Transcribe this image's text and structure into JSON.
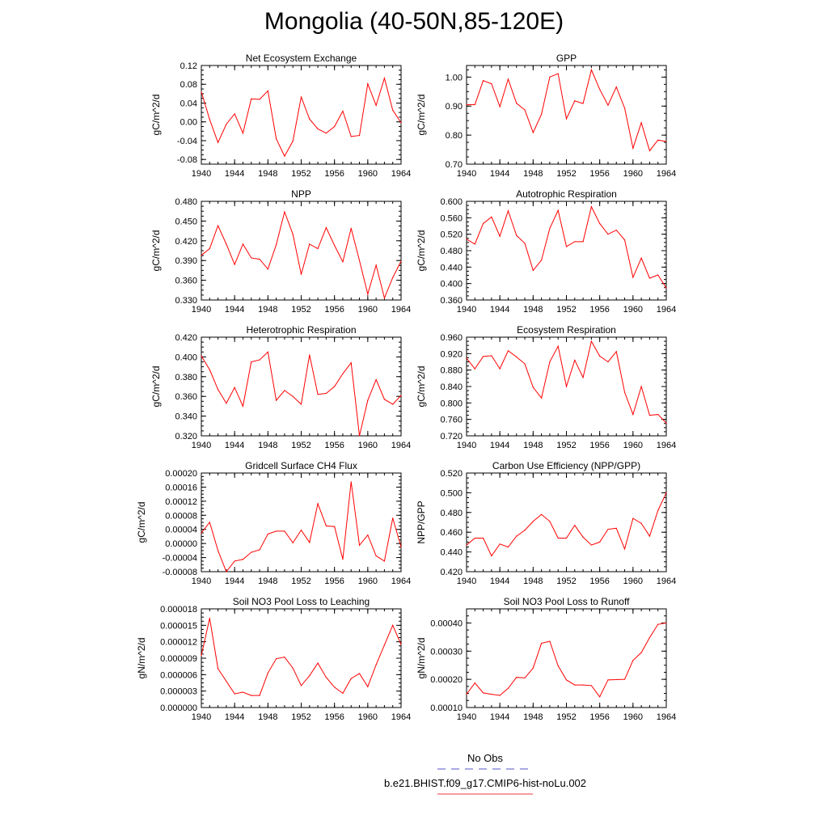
{
  "title": "Mongolia (40-50N,85-120E)",
  "legend": [
    {
      "label": "No Obs",
      "color": "#5555cc",
      "dash": true
    },
    {
      "label": "b.e21.BHIST.f09_g17.CMIP6-hist-noLu.002",
      "color": "#e8383d",
      "dash": false
    }
  ],
  "line_color": "#ff0000",
  "chart_data": [
    {
      "type": "line",
      "title": "Net Ecosystem Exchange",
      "ylabel": "gC/m^2/d",
      "ylim": [
        -0.09,
        0.12
      ],
      "yticks": [
        -0.08,
        -0.04,
        0.0,
        0.04,
        0.08,
        0.12
      ],
      "ytick_labels": [
        "-0.08",
        "-0.04",
        "0.00",
        "0.04",
        "0.08",
        "0.12"
      ],
      "x": [
        1940,
        1941,
        1942,
        1943,
        1944,
        1945,
        1946,
        1947,
        1948,
        1949,
        1950,
        1951,
        1952,
        1953,
        1954,
        1955,
        1956,
        1957,
        1958,
        1959,
        1960,
        1961,
        1962,
        1963,
        1964
      ],
      "values": [
        0.064,
        0.005,
        -0.044,
        -0.005,
        0.017,
        -0.024,
        0.049,
        0.048,
        0.066,
        -0.036,
        -0.073,
        -0.041,
        0.053,
        0.006,
        -0.015,
        -0.024,
        -0.01,
        0.023,
        -0.031,
        -0.029,
        0.081,
        0.035,
        0.093,
        0.025,
        -0.002
      ]
    },
    {
      "type": "line",
      "title": "GPP",
      "ylabel": "gC/m^2/d",
      "ylim": [
        0.7,
        1.04
      ],
      "yticks": [
        0.7,
        0.8,
        0.9,
        1.0
      ],
      "ytick_labels": [
        "0.70",
        "0.80",
        "0.90",
        "1.00"
      ],
      "x": [
        1940,
        1941,
        1942,
        1943,
        1944,
        1945,
        1946,
        1947,
        1948,
        1949,
        1950,
        1951,
        1952,
        1953,
        1954,
        1955,
        1956,
        1957,
        1958,
        1959,
        1960,
        1961,
        1962,
        1963,
        1964
      ],
      "values": [
        0.905,
        0.905,
        0.988,
        0.977,
        0.898,
        0.993,
        0.91,
        0.887,
        0.809,
        0.872,
        1.0,
        1.012,
        0.856,
        0.918,
        0.909,
        1.025,
        0.958,
        0.903,
        0.966,
        0.893,
        0.755,
        0.843,
        0.746,
        0.783,
        0.778
      ]
    },
    {
      "type": "line",
      "title": "NPP",
      "ylabel": "gC/m^2/d",
      "ylim": [
        0.33,
        0.48
      ],
      "yticks": [
        0.33,
        0.36,
        0.39,
        0.42,
        0.45,
        0.48
      ],
      "ytick_labels": [
        "0.330",
        "0.360",
        "0.390",
        "0.420",
        "0.450",
        "0.480"
      ],
      "x": [
        1940,
        1941,
        1942,
        1943,
        1944,
        1945,
        1946,
        1947,
        1948,
        1949,
        1950,
        1951,
        1952,
        1953,
        1954,
        1955,
        1956,
        1957,
        1958,
        1959,
        1960,
        1961,
        1962,
        1963,
        1964
      ],
      "values": [
        0.398,
        0.408,
        0.443,
        0.415,
        0.384,
        0.415,
        0.394,
        0.392,
        0.377,
        0.414,
        0.464,
        0.43,
        0.369,
        0.415,
        0.408,
        0.44,
        0.413,
        0.388,
        0.439,
        0.39,
        0.339,
        0.383,
        0.333,
        0.364,
        0.389
      ]
    },
    {
      "type": "line",
      "title": "Autotrophic Respiration",
      "ylabel": "gC/m^2/d",
      "ylim": [
        0.36,
        0.6
      ],
      "yticks": [
        0.36,
        0.4,
        0.44,
        0.48,
        0.52,
        0.56,
        0.6
      ],
      "ytick_labels": [
        "0.360",
        "0.400",
        "0.440",
        "0.480",
        "0.520",
        "0.560",
        "0.600"
      ],
      "x": [
        1940,
        1941,
        1942,
        1943,
        1944,
        1945,
        1946,
        1947,
        1948,
        1949,
        1950,
        1951,
        1952,
        1953,
        1954,
        1955,
        1956,
        1957,
        1958,
        1959,
        1960,
        1961,
        1962,
        1963,
        1964
      ],
      "values": [
        0.508,
        0.496,
        0.546,
        0.562,
        0.515,
        0.577,
        0.517,
        0.498,
        0.432,
        0.457,
        0.534,
        0.578,
        0.49,
        0.502,
        0.502,
        0.587,
        0.546,
        0.52,
        0.53,
        0.506,
        0.415,
        0.462,
        0.413,
        0.421,
        0.389
      ]
    },
    {
      "type": "line",
      "title": "Heterotrophic Respiration",
      "ylabel": "gC/m^2/d",
      "ylim": [
        0.32,
        0.42
      ],
      "yticks": [
        0.32,
        0.34,
        0.36,
        0.38,
        0.4,
        0.42
      ],
      "ytick_labels": [
        "0.320",
        "0.340",
        "0.360",
        "0.380",
        "0.400",
        "0.420"
      ],
      "x": [
        1940,
        1941,
        1942,
        1943,
        1944,
        1945,
        1946,
        1947,
        1948,
        1949,
        1950,
        1951,
        1952,
        1953,
        1954,
        1955,
        1956,
        1957,
        1958,
        1959,
        1960,
        1961,
        1962,
        1963,
        1964
      ],
      "values": [
        0.401,
        0.387,
        0.367,
        0.353,
        0.369,
        0.35,
        0.395,
        0.397,
        0.405,
        0.356,
        0.366,
        0.36,
        0.352,
        0.402,
        0.362,
        0.363,
        0.37,
        0.383,
        0.394,
        0.32,
        0.356,
        0.377,
        0.357,
        0.352,
        0.361
      ]
    },
    {
      "type": "line",
      "title": "Ecosystem Respiration",
      "ylabel": "gC/m^2/d",
      "ylim": [
        0.72,
        0.96
      ],
      "yticks": [
        0.72,
        0.76,
        0.8,
        0.84,
        0.88,
        0.92,
        0.96
      ],
      "ytick_labels": [
        "0.720",
        "0.760",
        "0.800",
        "0.840",
        "0.880",
        "0.920",
        "0.960"
      ],
      "x": [
        1940,
        1941,
        1942,
        1943,
        1944,
        1945,
        1946,
        1947,
        1948,
        1949,
        1950,
        1951,
        1952,
        1953,
        1954,
        1955,
        1956,
        1957,
        1958,
        1959,
        1960,
        1961,
        1962,
        1963,
        1964
      ],
      "values": [
        0.909,
        0.883,
        0.913,
        0.915,
        0.883,
        0.927,
        0.912,
        0.895,
        0.838,
        0.812,
        0.9,
        0.938,
        0.84,
        0.904,
        0.862,
        0.95,
        0.914,
        0.9,
        0.925,
        0.826,
        0.772,
        0.84,
        0.77,
        0.772,
        0.751
      ]
    },
    {
      "type": "line",
      "title": "Gridcell Surface CH4 Flux",
      "ylabel": "gC/m^2/d",
      "ylim": [
        -8e-05,
        0.0002
      ],
      "yticks": [
        -8e-05,
        -4e-05,
        0.0,
        4e-05,
        8e-05,
        0.00012,
        0.00016,
        0.0002
      ],
      "ytick_labels": [
        "-0.00008",
        "-0.00004",
        "0.00000",
        "0.00004",
        "0.00008",
        "0.00012",
        "0.00016",
        "0.00020"
      ],
      "x": [
        1940,
        1941,
        1942,
        1943,
        1944,
        1945,
        1946,
        1947,
        1948,
        1949,
        1950,
        1951,
        1952,
        1953,
        1954,
        1955,
        1956,
        1957,
        1958,
        1959,
        1960,
        1961,
        1962,
        1963,
        1964
      ],
      "values": [
        3e-05,
        6e-05,
        -2e-05,
        -8e-05,
        -5e-05,
        -4.5e-05,
        -2.5e-05,
        -1.8e-05,
        2.7e-05,
        3.5e-05,
        3.5e-05,
        2e-06,
        3.8e-05,
        3e-06,
        0.000113,
        5e-05,
        4.8e-05,
        -4.5e-05,
        0.000175,
        -5e-06,
        2.4e-05,
        -3.5e-05,
        -5e-05,
        7.2e-05,
        -1e-05
      ]
    },
    {
      "type": "line",
      "title": "Carbon Use Efficiency (NPP/GPP)",
      "ylabel": "NPP/GPP",
      "ylim": [
        0.42,
        0.52
      ],
      "yticks": [
        0.42,
        0.44,
        0.46,
        0.48,
        0.5,
        0.52
      ],
      "ytick_labels": [
        "0.420",
        "0.440",
        "0.460",
        "0.480",
        "0.500",
        "0.520"
      ],
      "x": [
        1940,
        1941,
        1942,
        1943,
        1944,
        1945,
        1946,
        1947,
        1948,
        1949,
        1950,
        1951,
        1952,
        1953,
        1954,
        1955,
        1956,
        1957,
        1958,
        1959,
        1960,
        1961,
        1962,
        1963,
        1964
      ],
      "values": [
        0.447,
        0.454,
        0.454,
        0.436,
        0.448,
        0.445,
        0.456,
        0.462,
        0.471,
        0.478,
        0.471,
        0.454,
        0.454,
        0.467,
        0.455,
        0.447,
        0.45,
        0.463,
        0.464,
        0.443,
        0.474,
        0.469,
        0.456,
        0.482,
        0.5
      ]
    },
    {
      "type": "line",
      "title": "Soil NO3 Pool Loss to Leaching",
      "ylabel": "gN/m^2/d",
      "ylim": [
        0.0,
        1.8e-05
      ],
      "yticks": [
        0.0,
        3e-06,
        6e-06,
        9e-06,
        1.2e-05,
        1.5e-05,
        1.8e-05
      ],
      "ytick_labels": [
        "0.000000",
        "0.000003",
        "0.000006",
        "0.000009",
        "0.000012",
        "0.000015",
        "0.000018"
      ],
      "x": [
        1940,
        1941,
        1942,
        1943,
        1944,
        1945,
        1946,
        1947,
        1948,
        1949,
        1950,
        1951,
        1952,
        1953,
        1954,
        1955,
        1956,
        1957,
        1958,
        1959,
        1960,
        1961,
        1962,
        1963,
        1964
      ],
      "values": [
        9.5e-06,
        1.63e-05,
        7.1e-06,
        4.8e-06,
        2.5e-06,
        2.8e-06,
        2.2e-06,
        2.2e-06,
        6.3e-06,
        8.9e-06,
        9.2e-06,
        7.2e-06,
        4e-06,
        5.8e-06,
        8.1e-06,
        5.5e-06,
        3.7e-06,
        2.6e-06,
        5.3e-06,
        6.2e-06,
        3.8e-06,
        7.8e-06,
        1.14e-05,
        1.5e-05,
        1.15e-05
      ]
    },
    {
      "type": "line",
      "title": "Soil NO3 Pool Loss to Runoff",
      "ylabel": "gN/m^2/d",
      "ylim": [
        0.0001,
        0.00045
      ],
      "yticks": [
        0.0001,
        0.0002,
        0.0003,
        0.0004
      ],
      "ytick_labels": [
        "0.00010",
        "0.00020",
        "0.00030",
        "0.00040"
      ],
      "x": [
        1940,
        1941,
        1942,
        1943,
        1944,
        1945,
        1946,
        1947,
        1948,
        1949,
        1950,
        1951,
        1952,
        1953,
        1954,
        1955,
        1956,
        1957,
        1958,
        1959,
        1960,
        1961,
        1962,
        1963,
        1964
      ],
      "values": [
        0.000147,
        0.000187,
        0.000152,
        0.000147,
        0.000143,
        0.000168,
        0.000207,
        0.000205,
        0.00024,
        0.000328,
        0.000335,
        0.000248,
        0.000198,
        0.00018,
        0.00018,
        0.000178,
        0.000138,
        0.000198,
        0.000199,
        0.0002,
        0.000267,
        0.000295,
        0.000348,
        0.000395,
        0.0004
      ]
    }
  ],
  "xaxis": {
    "ticks": [
      1940,
      1944,
      1948,
      1952,
      1956,
      1960,
      1964
    ],
    "tick_labels": [
      "1940",
      "1944",
      "1948",
      "1952",
      "1956",
      "1960",
      "1964"
    ],
    "xlim": [
      1940,
      1964
    ]
  }
}
